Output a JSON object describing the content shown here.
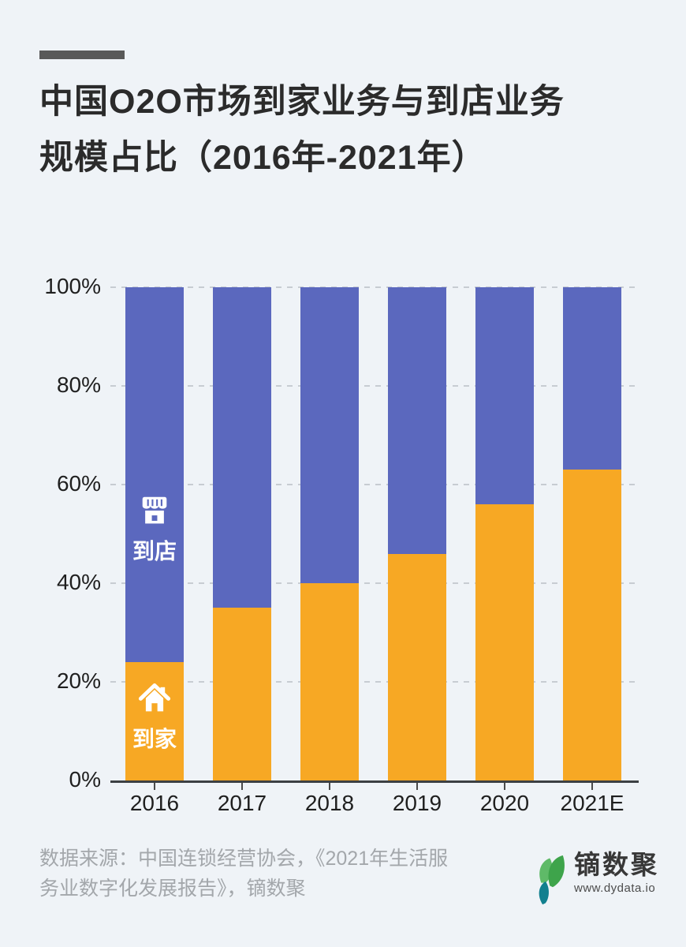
{
  "page": {
    "background": "#EFF3F7",
    "accent_color": "#595959"
  },
  "header": {
    "title_line1": "中国O2O市场到家业务与到店业务",
    "title_line2": "规模占比（2016年-2021年）"
  },
  "chart_data": {
    "type": "bar",
    "stacked": true,
    "title": "中国O2O市场到家业务与到店业务规模占比（2016年-2021年）",
    "categories": [
      "2016",
      "2017",
      "2018",
      "2019",
      "2020",
      "2021E"
    ],
    "series": [
      {
        "name": "到家",
        "icon": "home-icon",
        "color": "#F7A824",
        "values": [
          24,
          35,
          40,
          46,
          56,
          63
        ]
      },
      {
        "name": "到店",
        "icon": "store-icon",
        "color": "#5B68BE",
        "values": [
          76,
          65,
          60,
          54,
          44,
          37
        ]
      }
    ],
    "unit": "%",
    "ylim": [
      0,
      100
    ],
    "y_ticks": [
      "100%",
      "80%",
      "60%",
      "40%",
      "20%",
      "0%"
    ],
    "grid": "horizontal dashed",
    "legend_position": "inside-first-bar"
  },
  "footer": {
    "source_line1": "数据来源：中国连锁经营协会，《2021年生活服",
    "source_line2": "务业数字化发展报告》，镝数聚",
    "logo_text": "镝数聚",
    "logo_url": "www.dydata.io",
    "logo_icon": "leaf-logo-icon",
    "leaf_colors": [
      "#5FBA68",
      "#3EA44B",
      "#12808F"
    ]
  }
}
